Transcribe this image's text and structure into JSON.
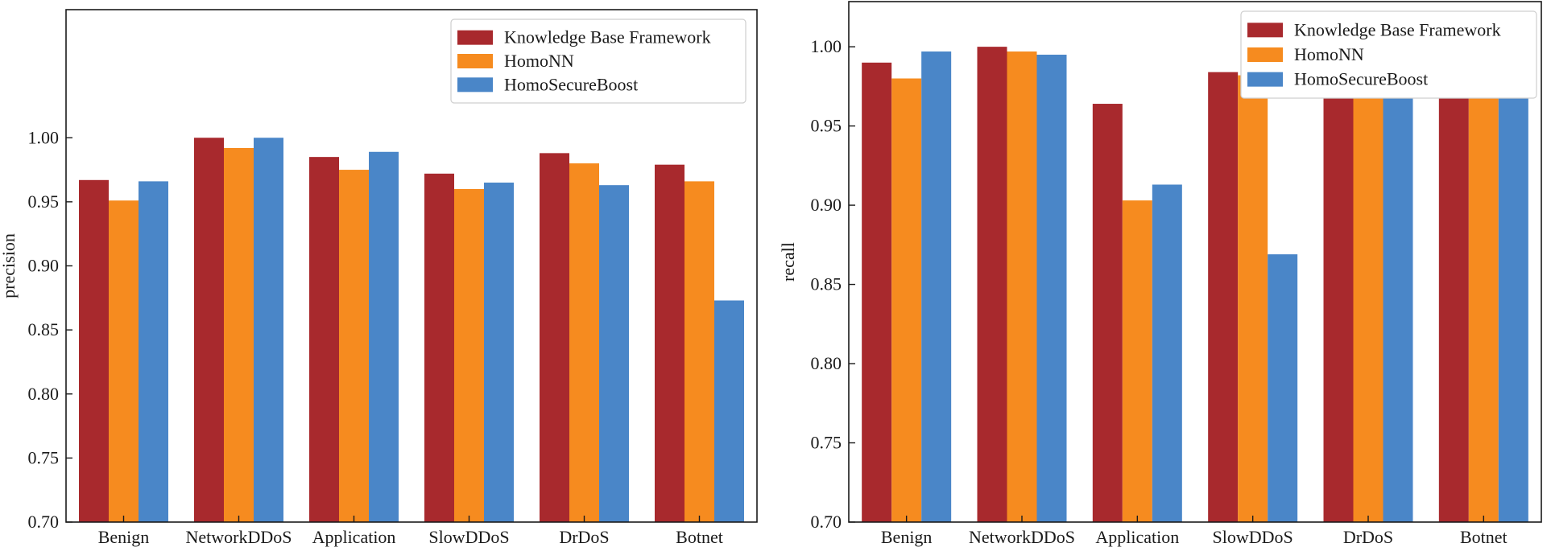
{
  "chart_data": [
    {
      "type": "bar",
      "ylabel": "precision",
      "xlabel": "",
      "ylim": [
        0.7,
        1.1
      ],
      "yticks": [
        "0.70",
        "0.75",
        "0.80",
        "0.85",
        "0.90",
        "0.95",
        "1.00"
      ],
      "categories": [
        "Benign",
        "NetworkDDoS",
        "Application",
        "SlowDDoS",
        "DrDoS",
        "Botnet"
      ],
      "legend_position": "top-right",
      "series": [
        {
          "name": "Knowledge Base Framework",
          "color": "#A8292D",
          "values": [
            0.967,
            1.0,
            0.985,
            0.972,
            0.988,
            0.979
          ]
        },
        {
          "name": "HomoNN",
          "color": "#F68B1F",
          "values": [
            0.951,
            0.992,
            0.975,
            0.96,
            0.98,
            0.966
          ]
        },
        {
          "name": "HomoSecureBoost",
          "color": "#4A86C8",
          "values": [
            0.966,
            1.0,
            0.989,
            0.965,
            0.963,
            0.873
          ]
        }
      ]
    },
    {
      "type": "bar",
      "ylabel": "recall",
      "xlabel": "",
      "ylim": [
        0.7,
        1.0285
      ],
      "yticks": [
        "0.70",
        "0.75",
        "0.80",
        "0.85",
        "0.90",
        "0.95",
        "1.00"
      ],
      "categories": [
        "Benign",
        "NetworkDDoS",
        "Application",
        "SlowDDoS",
        "DrDoS",
        "Botnet"
      ],
      "legend_position": "top-right",
      "series": [
        {
          "name": "Knowledge Base Framework",
          "color": "#A8292D",
          "values": [
            0.99,
            1.0,
            0.964,
            0.984,
            1.0,
            1.0
          ]
        },
        {
          "name": "HomoNN",
          "color": "#F68B1F",
          "values": [
            0.98,
            0.997,
            0.903,
            0.982,
            0.995,
            0.995
          ]
        },
        {
          "name": "HomoSecureBoost",
          "color": "#4A86C8",
          "values": [
            0.997,
            0.995,
            0.913,
            0.869,
            0.997,
            0.992
          ]
        }
      ]
    }
  ]
}
